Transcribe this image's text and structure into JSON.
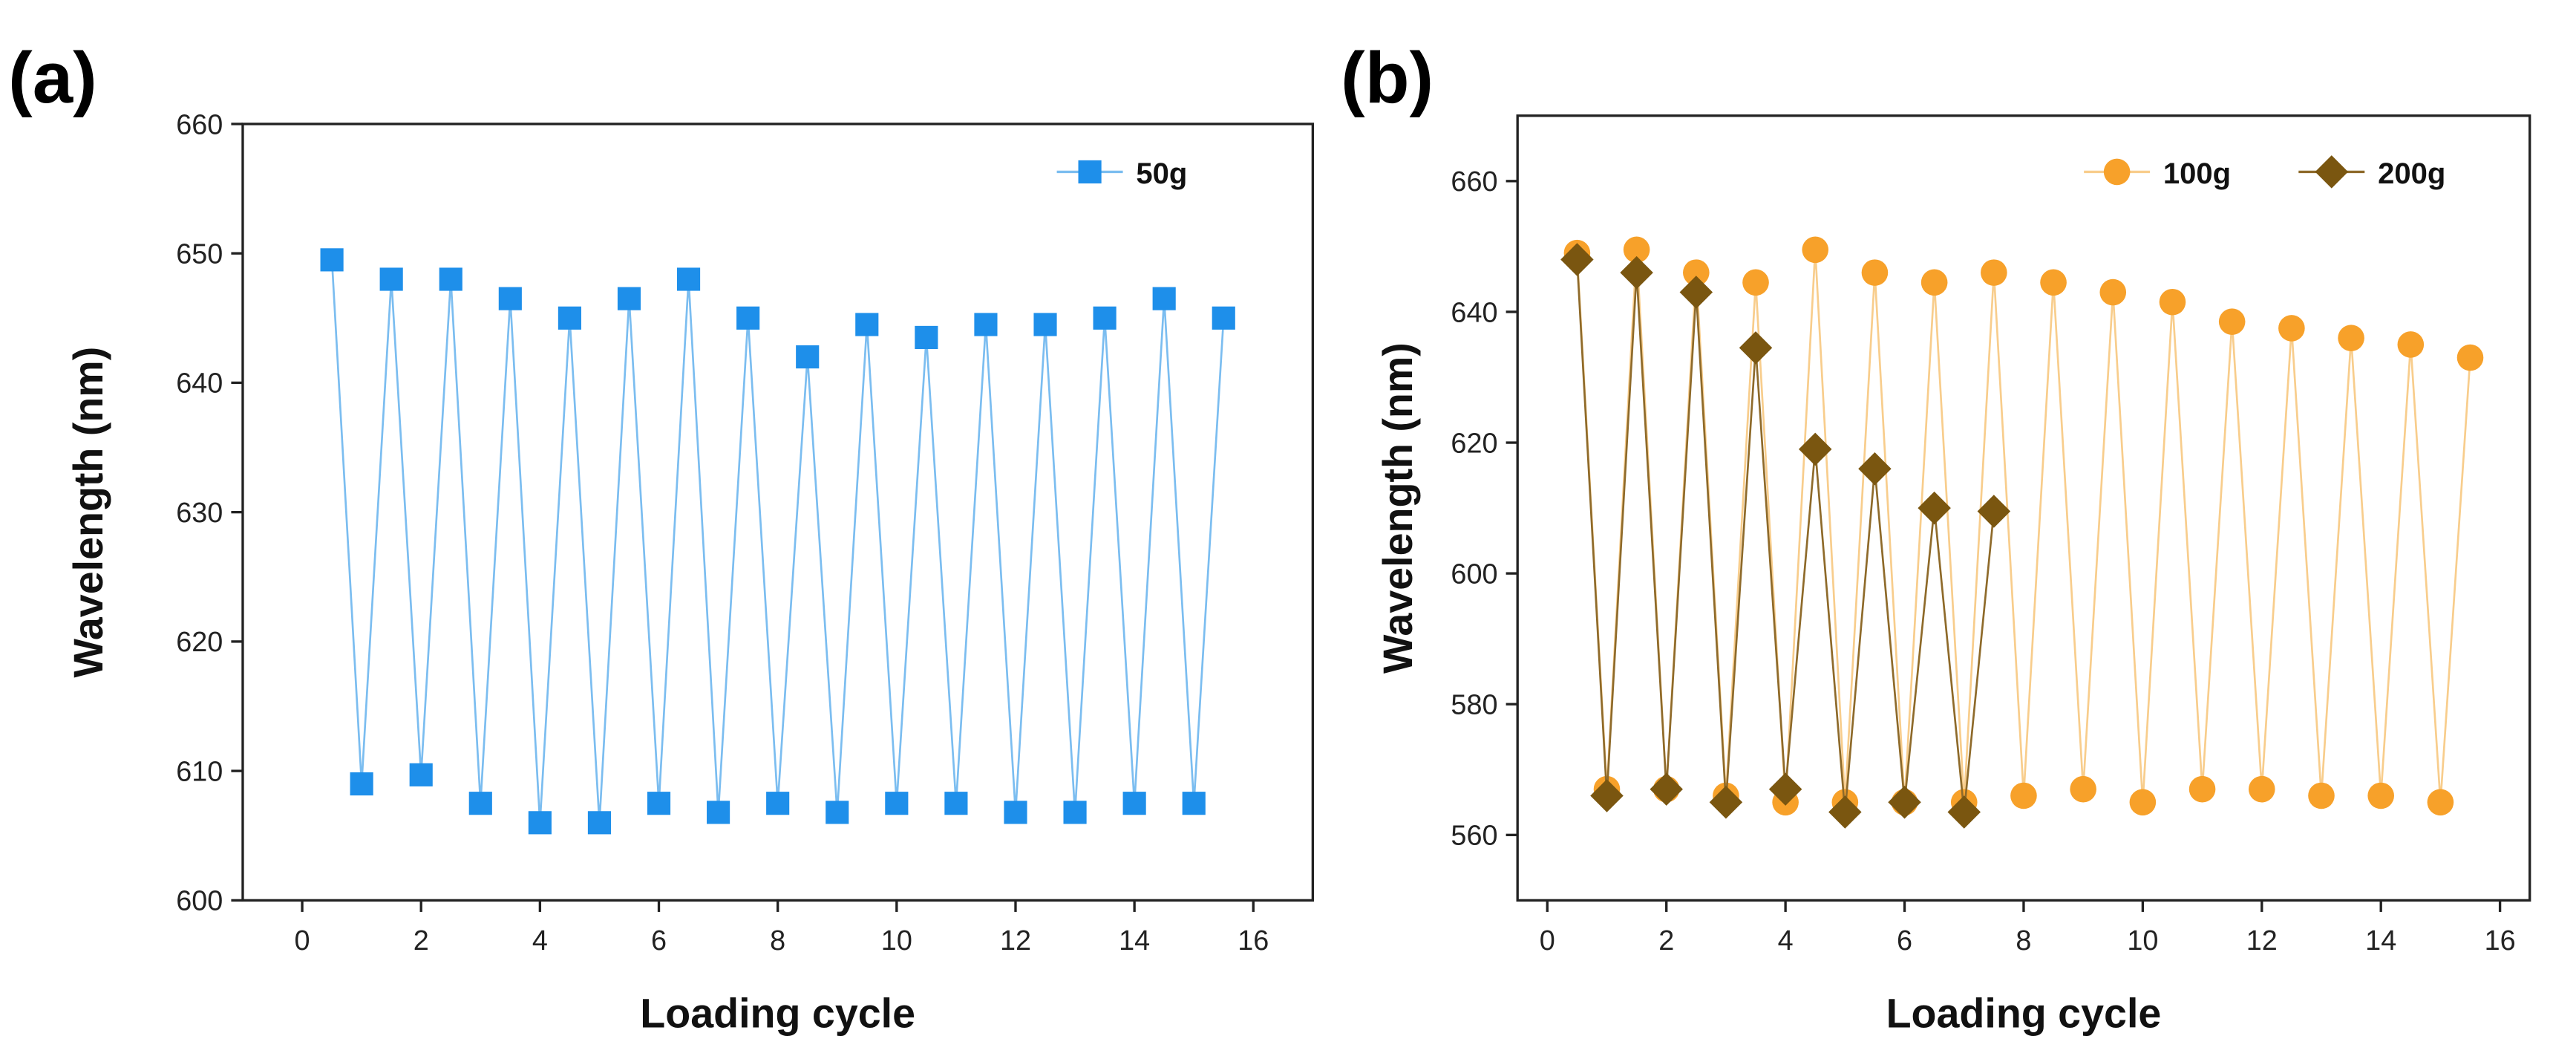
{
  "chart_data": [
    {
      "type": "line",
      "panel_label": "(a)",
      "xlabel": "Loading cycle",
      "ylabel": "Wavelength (nm)",
      "xlim": [
        -1,
        17
      ],
      "ylim": [
        600,
        660
      ],
      "xticks": [
        0,
        2,
        4,
        6,
        8,
        10,
        12,
        14,
        16
      ],
      "yticks": [
        600,
        610,
        620,
        630,
        640,
        650,
        660
      ],
      "grid": false,
      "legend_position": "top-right",
      "series": [
        {
          "name": "50g",
          "color": "#1E8FEA",
          "line_color": "#7BBDF0",
          "marker": "square",
          "x": [
            0.5,
            1,
            1.5,
            2,
            2.5,
            3,
            3.5,
            4,
            4.5,
            5,
            5.5,
            6,
            6.5,
            7,
            7.5,
            8,
            8.5,
            9,
            9.5,
            10,
            10.5,
            11,
            11.5,
            12,
            12.5,
            13,
            13.5,
            14,
            14.5,
            15,
            15.5
          ],
          "y": [
            649.5,
            609,
            648,
            609.7,
            648,
            607.5,
            646.5,
            606,
            645,
            606,
            646.5,
            607.5,
            648,
            606.8,
            645,
            607.5,
            642,
            606.8,
            644.5,
            607.5,
            643.5,
            607.5,
            644.5,
            606.8,
            644.5,
            606.8,
            645,
            607.5,
            646.5,
            607.5,
            645
          ]
        }
      ]
    },
    {
      "type": "line",
      "panel_label": "(b)",
      "xlabel": "Loading cycle",
      "ylabel": "Wavelength (nm)",
      "xlim": [
        -0.5,
        16.5
      ],
      "ylim": [
        550,
        670
      ],
      "xticks": [
        0,
        2,
        4,
        6,
        8,
        10,
        12,
        14,
        16
      ],
      "yticks": [
        560,
        580,
        600,
        620,
        640,
        660
      ],
      "grid": false,
      "legend_position": "top-right",
      "series": [
        {
          "name": "100g",
          "color": "#F7A12A",
          "line_color": "#F8CD8C",
          "marker": "circle",
          "x": [
            0.5,
            1,
            1.5,
            2,
            2.5,
            3,
            3.5,
            4,
            4.5,
            5,
            5.5,
            6,
            6.5,
            7,
            7.5,
            8,
            8.5,
            9,
            9.5,
            10,
            10.5,
            11,
            11.5,
            12,
            12.5,
            13,
            13.5,
            14,
            14.5,
            15,
            15.5
          ],
          "y": [
            649,
            567,
            649.5,
            567,
            646,
            566,
            644.5,
            565,
            649.5,
            565,
            646,
            565,
            644.5,
            565,
            646,
            566,
            644.5,
            567,
            643,
            565,
            641.5,
            567,
            638.5,
            567,
            637.5,
            566,
            636,
            566,
            635,
            565,
            633
          ]
        },
        {
          "name": "200g",
          "color": "#7A5610",
          "line_color": "#8E6A2A",
          "marker": "diamond",
          "x": [
            0.5,
            1,
            1.5,
            2,
            2.5,
            3,
            3.5,
            4,
            4.5,
            5,
            5.5,
            6,
            6.5,
            7,
            7.5
          ],
          "y": [
            648,
            566,
            646,
            567,
            643,
            565,
            634.5,
            567,
            619,
            563.5,
            616,
            565,
            610,
            563.5,
            609.5
          ]
        }
      ]
    }
  ]
}
